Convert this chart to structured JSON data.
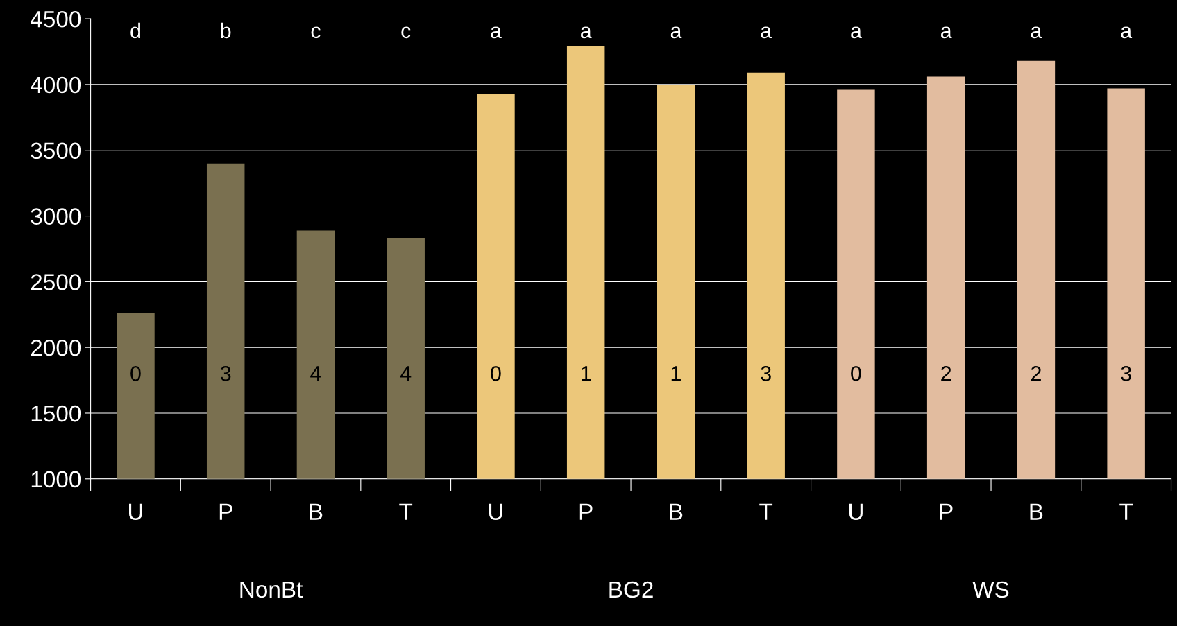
{
  "chart_data": {
    "type": "bar",
    "categories": [
      "U",
      "P",
      "B",
      "T",
      "U",
      "P",
      "B",
      "T",
      "U",
      "P",
      "B",
      "T"
    ],
    "values": [
      2260,
      3400,
      2890,
      2830,
      3930,
      4290,
      4000,
      4090,
      3960,
      4060,
      4180,
      3970
    ],
    "colors": [
      "#7a7050",
      "#7a7050",
      "#7a7050",
      "#7a7050",
      "#ecc77a",
      "#ecc77a",
      "#ecc77a",
      "#ecc77a",
      "#e2bc9f",
      "#e2bc9f",
      "#e2bc9f",
      "#e2bc9f"
    ],
    "ylim": [
      1000,
      4500
    ],
    "yticks": [
      1000,
      1500,
      2000,
      2500,
      3000,
      3500,
      4000,
      4500
    ],
    "grid": "y",
    "annotations": [
      "d",
      "b",
      "c",
      "c",
      "a",
      "a",
      "a",
      "a",
      "a",
      "a",
      "a",
      "a",
      "0",
      "3",
      "4",
      "4",
      "0",
      "1",
      "1",
      "3",
      "0",
      "2",
      "2",
      "3",
      "NonBt",
      "BG2",
      "WS"
    ]
  }
}
